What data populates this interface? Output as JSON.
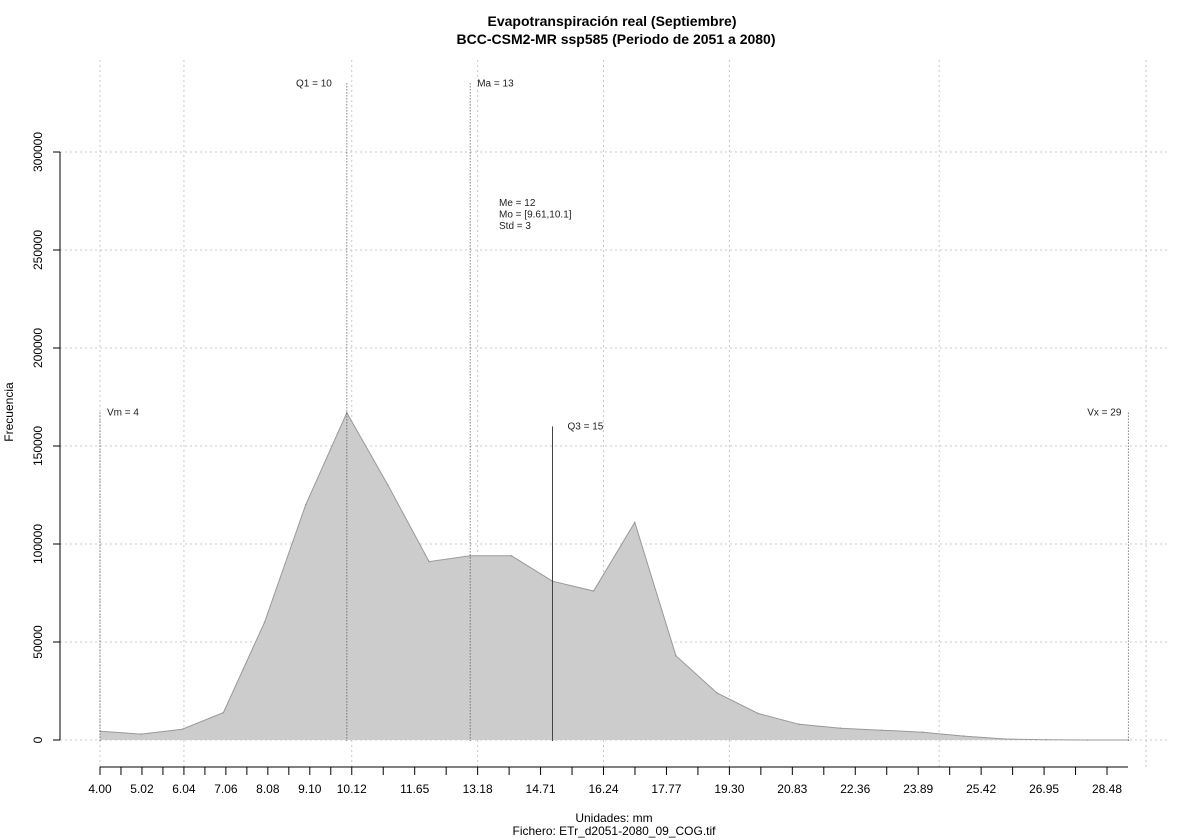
{
  "chart_data": {
    "type": "area",
    "title": "Evapotranspiración real (Septiembre)",
    "subtitle": "BCC-CSM2-MR ssp585 (Periodo de 2051 a 2080)",
    "xlabel": "Unidades: mm",
    "caption": "Fichero: ETr_d2051-2080_09_COG.tif",
    "ylabel": "Frecuencia",
    "xlim": [
      4.0,
      28.99
    ],
    "ylim": [
      0,
      335000
    ],
    "x_ticks": [
      "4.00",
      "5.02",
      "6.04",
      "7.06",
      "8.08",
      "9.10",
      "10.12",
      "11.65",
      "13.18",
      "14.71",
      "16.24",
      "17.77",
      "19.30",
      "20.83",
      "22.36",
      "23.89",
      "25.42",
      "26.95",
      "28.48"
    ],
    "y_ticks": [
      "0",
      "50000",
      "100000",
      "150000",
      "200000",
      "250000",
      "300000"
    ],
    "grid": true,
    "fill_color": "#cccccc",
    "line_color": "#999999",
    "x": [
      4.0,
      5.0,
      6.0,
      7.0,
      8.0,
      9.0,
      10.0,
      11.0,
      12.0,
      13.0,
      14.0,
      15.0,
      16.0,
      17.0,
      18.0,
      19.0,
      20.0,
      21.0,
      22.0,
      23.0,
      24.0,
      25.0,
      26.0,
      27.0,
      28.0,
      29.0
    ],
    "values": [
      4500,
      3000,
      5500,
      14000,
      60000,
      120000,
      167000,
      130000,
      91000,
      94000,
      94000,
      81000,
      76000,
      111000,
      43000,
      24000,
      13500,
      8000,
      6000,
      5000,
      4000,
      2000,
      500,
      100,
      0,
      0
    ],
    "markers": [
      {
        "label": "Vm = 4",
        "x": 4.0,
        "top": 167000,
        "style": "dotted"
      },
      {
        "label": "Q1 = 10",
        "x": 10.0,
        "top": 335000,
        "style": "dotted"
      },
      {
        "label": "Ma = 13",
        "x": 13.0,
        "top": 335000,
        "style": "dotted"
      },
      {
        "label": "Q3 = 15",
        "x": 15.0,
        "top": 160000,
        "style": "solid"
      },
      {
        "label": "Vx = 29",
        "x": 29.0,
        "top": 167000,
        "style": "dotted"
      }
    ],
    "stats": [
      "Me = 12",
      "Mo = [9.61,10.1]",
      "Std = 3"
    ]
  }
}
